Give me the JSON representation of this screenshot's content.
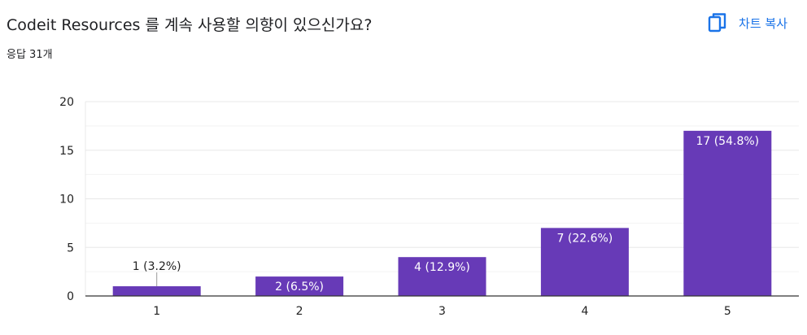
{
  "question": {
    "title": "Codeit Resources 를 계속 사용할 의향이 있으신가요?",
    "response_count": "응답 31개"
  },
  "toolbar": {
    "copy_chart_label": "차트 복사",
    "copy_icon": "copy-icon"
  },
  "colors": {
    "bar": "#673ab7",
    "accent": "#1a73e8",
    "grid": "#e8e8e8",
    "axis": "#333333",
    "text": "#202124"
  },
  "chart_data": {
    "type": "bar",
    "categories": [
      "1",
      "2",
      "3",
      "4",
      "5"
    ],
    "values": [
      1,
      2,
      4,
      7,
      17
    ],
    "data_labels": [
      "1 (3.2%)",
      "2 (6.5%)",
      "4 (12.9%)",
      "7 (22.6%)",
      "17 (54.8%)"
    ],
    "ylim": [
      0,
      20
    ],
    "yticks": [
      0,
      5,
      10,
      15,
      20
    ],
    "title": "",
    "xlabel": "",
    "ylabel": "",
    "grid": true
  }
}
